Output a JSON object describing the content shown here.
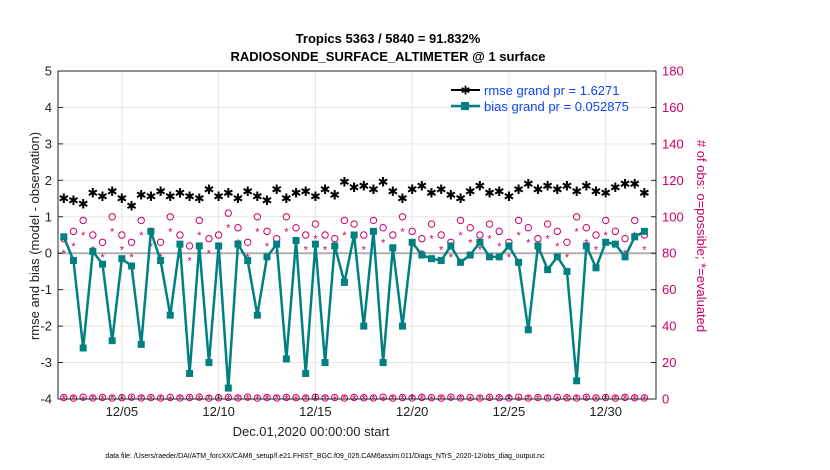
{
  "title_line1": "Tropics 5363 / 5840 = 91.832%",
  "title_line2": "RADIOSONDE_SURFACE_ALTIMETER @ 1 surface",
  "footer": "data file: /Users/raeder/DAI/ATM_forcXX/CAM6_setup/f.e21.FHIST_BGC.f09_025.CAM6assim.011/Diags_NTrS_2020-12/obs_diag_output.nc",
  "colors": {
    "rmse": "#000000",
    "bias": "#008080",
    "obs": "#cc0066",
    "zero_line": "#b0b0b0",
    "grid": "#e6e6e6"
  },
  "chart_data": {
    "type": "line",
    "title": "Tropics 5363 / 5840 = 91.832%",
    "subtitle": "RADIOSONDE_SURFACE_ALTIMETER @ 1 surface",
    "xlabel": "Dec.01,2020 00:00:00 start",
    "ylabel": "rmse and bias (model - observation)",
    "ylabel_right": "# of obs: o=possible; *=evaluated",
    "x_range_days": [
      1.7,
      32.6
    ],
    "ylim": [
      -4,
      5
    ],
    "ylim_right": [
      0,
      180
    ],
    "yticks": [
      "-4",
      "-3",
      "-2",
      "-1",
      "0",
      "1",
      "2",
      "3",
      "4",
      "5"
    ],
    "yticks_right": [
      "0",
      "20",
      "40",
      "60",
      "80",
      "100",
      "120",
      "140",
      "160",
      "180"
    ],
    "xticks": [
      {
        "day": 5,
        "label": "12/05"
      },
      {
        "day": 10,
        "label": "12/10"
      },
      {
        "day": 15,
        "label": "12/15"
      },
      {
        "day": 20,
        "label": "12/20"
      },
      {
        "day": 25,
        "label": "12/25"
      },
      {
        "day": 30,
        "label": "12/30"
      }
    ],
    "legend": [
      {
        "name": "rmse grand pr = 1.6271",
        "series": "rmse"
      },
      {
        "name": "bias grand pr = 0.052875",
        "series": "bias"
      }
    ],
    "legend_position": "top-right",
    "x": [
      2.0,
      2.5,
      3.0,
      3.5,
      4.0,
      4.5,
      5.0,
      5.5,
      6.0,
      6.5,
      7.0,
      7.5,
      8.0,
      8.5,
      9.0,
      9.5,
      10.0,
      10.5,
      11.0,
      11.5,
      12.0,
      12.5,
      13.0,
      13.5,
      14.0,
      14.5,
      15.0,
      15.5,
      16.0,
      16.5,
      17.0,
      17.5,
      18.0,
      18.5,
      19.0,
      19.5,
      20.0,
      20.5,
      21.0,
      21.5,
      22.0,
      22.5,
      23.0,
      23.5,
      24.0,
      24.5,
      25.0,
      25.5,
      26.0,
      26.5,
      27.0,
      27.5,
      28.0,
      28.5,
      29.0,
      29.5,
      30.0,
      30.5,
      31.0,
      31.5,
      32.0
    ],
    "series": [
      {
        "name": "rmse",
        "marker": "*",
        "values": [
          1.5,
          1.45,
          1.35,
          1.65,
          1.55,
          1.7,
          1.5,
          1.3,
          1.6,
          1.55,
          1.7,
          1.55,
          1.65,
          1.55,
          1.5,
          1.75,
          1.55,
          1.65,
          1.5,
          1.7,
          1.55,
          1.45,
          1.75,
          1.5,
          1.65,
          1.7,
          1.55,
          1.75,
          1.6,
          1.95,
          1.8,
          1.85,
          1.75,
          1.95,
          1.7,
          1.5,
          1.75,
          1.85,
          1.65,
          1.75,
          1.6,
          1.5,
          1.7,
          1.85,
          1.65,
          1.7,
          1.55,
          1.75,
          1.9,
          1.75,
          1.85,
          1.75,
          1.85,
          1.7,
          1.85,
          1.7,
          1.65,
          1.8,
          1.9,
          1.9,
          1.65
        ]
      },
      {
        "name": "bias",
        "marker": "o",
        "values": [
          0.45,
          -0.2,
          -2.6,
          0.05,
          -0.3,
          -2.4,
          -0.15,
          -0.35,
          -2.5,
          0.6,
          -0.2,
          -1.7,
          0.25,
          -3.3,
          0.2,
          -3.0,
          0.2,
          -3.7,
          0.25,
          -0.2,
          -1.7,
          -0.1,
          0.25,
          -2.9,
          0.35,
          -3.3,
          0.25,
          -3.0,
          0.2,
          -0.8,
          0.5,
          -2.0,
          0.6,
          -3.0,
          0.15,
          -2.0,
          0.3,
          -0.05,
          -0.15,
          -0.2,
          0.2,
          -0.25,
          -0.05,
          0.3,
          -0.1,
          -0.1,
          0.2,
          -0.25,
          -2.1,
          0.2,
          -0.45,
          -0.1,
          -0.5,
          -3.5,
          0.2,
          -0.4,
          0.3,
          0.25,
          -0.1,
          0.45,
          0.6
        ]
      },
      {
        "name": "obs_possible",
        "marker": "o",
        "values": [
          88,
          92,
          98,
          90,
          86,
          100,
          90,
          86,
          98,
          92,
          86,
          100,
          90,
          84,
          98,
          88,
          90,
          102,
          94,
          86,
          100,
          92,
          88,
          100,
          94,
          90,
          96,
          90,
          88,
          98,
          96,
          90,
          98,
          94,
          90,
          100,
          92,
          88,
          96,
          90,
          86,
          98,
          94,
          90,
          96,
          92,
          86,
          98,
          94,
          88,
          96,
          92,
          86,
          100,
          94,
          90,
          98,
          92,
          88,
          98,
          90
        ]
      },
      {
        "name": "obs_evaluated",
        "marker": "*",
        "values": [
          80,
          84,
          90,
          82,
          78,
          92,
          82,
          78,
          90,
          84,
          78,
          92,
          82,
          76,
          90,
          80,
          82,
          94,
          86,
          78,
          92,
          84,
          80,
          92,
          86,
          82,
          88,
          82,
          80,
          90,
          88,
          82,
          90,
          86,
          82,
          92,
          84,
          80,
          88,
          82,
          78,
          90,
          86,
          82,
          88,
          84,
          78,
          90,
          86,
          80,
          88,
          84,
          78,
          92,
          86,
          82,
          90,
          84,
          80,
          90,
          82
        ]
      },
      {
        "name": "obs_zero_possible",
        "marker": "o",
        "values": [
          0.8,
          0.5,
          1.0,
          0.6,
          0.9,
          0.5,
          0.7,
          1.0,
          0.6,
          0.8,
          0.5,
          0.9,
          0.6,
          0.8,
          1.0,
          0.5,
          0.7,
          0.9,
          0.6,
          1.0,
          0.5,
          0.8,
          0.6,
          0.9,
          0.7,
          0.5,
          1.0,
          0.6,
          0.8,
          0.5,
          0.9,
          0.7,
          0.6,
          1.0,
          0.5,
          0.8,
          0.6,
          0.9,
          0.7,
          0.5,
          1.0,
          0.6,
          0.8,
          0.5,
          0.9,
          0.7,
          0.6,
          1.0,
          0.5,
          0.8,
          0.6,
          0.9,
          0.7,
          0.5,
          1.0,
          0.6,
          0.8,
          0.5,
          0.9,
          0.7,
          0.6
        ]
      },
      {
        "name": "obs_zero_evaluated",
        "marker": "*",
        "values": [
          0.2,
          0.4,
          0.1,
          0.3,
          0.2,
          0.5,
          0.1,
          0.3,
          0.4,
          0.2,
          0.3,
          0.1,
          0.4,
          0.2,
          0.3,
          0.5,
          0.1,
          0.2,
          0.4,
          0.3,
          0.1,
          0.2,
          0.5,
          0.3,
          0.1,
          0.4,
          0.2,
          0.3,
          0.1,
          0.5,
          0.2,
          0.4,
          0.3,
          0.1,
          0.2,
          0.4,
          0.3,
          0.5,
          0.1,
          0.2,
          0.3,
          0.4,
          0.1,
          0.5,
          0.2,
          0.3,
          0.4,
          0.1,
          0.2,
          0.3,
          0.5,
          0.1,
          0.4,
          0.2,
          0.3,
          0.1,
          0.4,
          0.2,
          0.5,
          0.3,
          0.1
        ]
      }
    ]
  }
}
